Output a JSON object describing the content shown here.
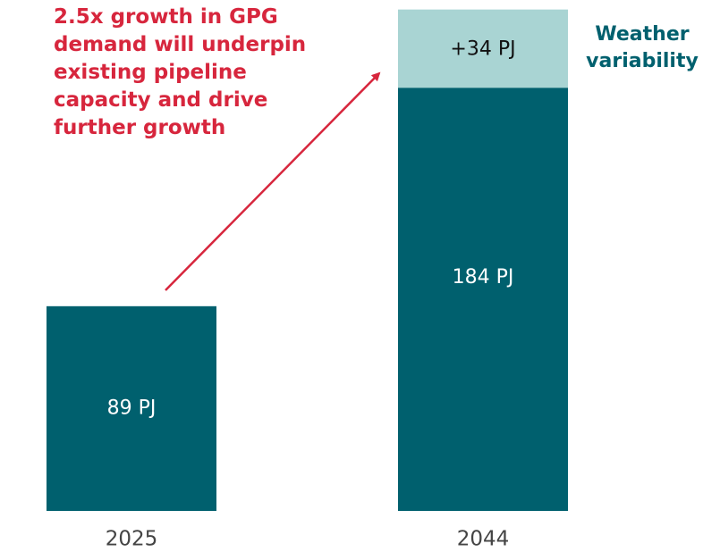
{
  "chart_data": {
    "type": "bar",
    "stacked": true,
    "annotation": "2.5x growth in GPG demand will underpin existing pipeline capacity and drive further growth",
    "categories": [
      "2025",
      "2044"
    ],
    "series": [
      {
        "color": "#00606e",
        "values": [
          89,
          184
        ],
        "value_labels": [
          "89 PJ",
          "184 PJ"
        ]
      },
      {
        "name": "Weather variability",
        "color": "#a9d4d3",
        "values": [
          null,
          34
        ],
        "value_labels": [
          null,
          "+34 PJ"
        ]
      }
    ],
    "ylim": [
      0,
      220
    ]
  }
}
